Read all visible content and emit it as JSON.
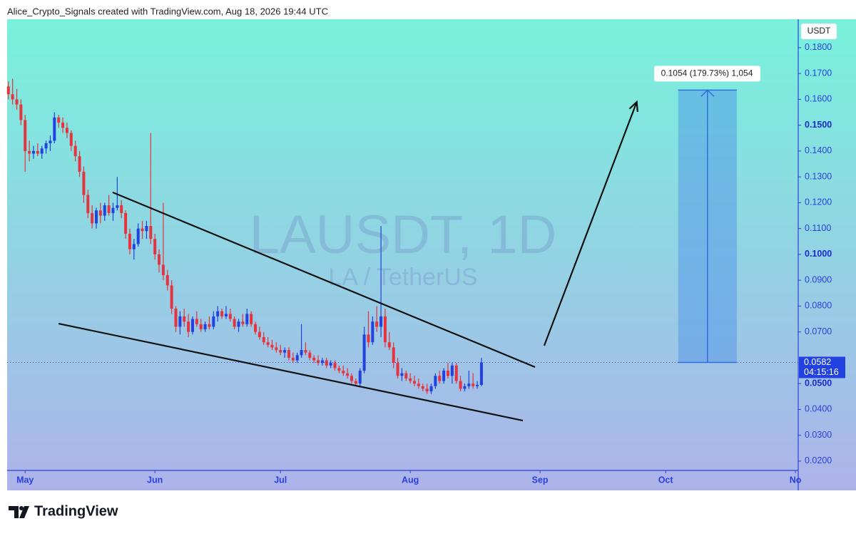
{
  "header": "Alice_Crypto_Signals created with TradingView.com, Aug 18, 2026 19:44 UTC",
  "footer": "TradingView",
  "chart_data": {
    "type": "candlestick",
    "watermark": "LAUSDT, 1D",
    "watermark_sub": "LA / TetherUS",
    "currency": "USDT",
    "countdown": "04:15:16",
    "up_color": "#2141e0",
    "down_color": "#e5343f",
    "xlim": [
      -0.3,
      188.5
    ],
    "ylim": [
      0.0164,
      0.191
    ],
    "xticks": [
      {
        "value": 4,
        "label": "May"
      },
      {
        "value": 35,
        "label": "Jun"
      },
      {
        "value": 65,
        "label": "Jul"
      },
      {
        "value": 96,
        "label": "Aug"
      },
      {
        "value": 127,
        "label": "Sep"
      },
      {
        "value": 157,
        "label": "Oct"
      },
      {
        "value": 188,
        "label": "No"
      }
    ],
    "yticks": [
      {
        "value": 0.18,
        "label": "0.1800"
      },
      {
        "value": 0.17,
        "label": "0.1700"
      },
      {
        "value": 0.16,
        "label": "0.1600"
      },
      {
        "value": 0.15,
        "label": "0.1500"
      },
      {
        "value": 0.14,
        "label": "0.1400"
      },
      {
        "value": 0.13,
        "label": "0.1300"
      },
      {
        "value": 0.12,
        "label": "0.1200"
      },
      {
        "value": 0.11,
        "label": "0.1100"
      },
      {
        "value": 0.1,
        "label": "0.1000"
      },
      {
        "value": 0.09,
        "label": "0.0900"
      },
      {
        "value": 0.08,
        "label": "0.0800"
      },
      {
        "value": 0.07,
        "label": "0.0700"
      },
      {
        "value": 0.05,
        "label": "0.0500"
      },
      {
        "value": 0.04,
        "label": "0.0400"
      },
      {
        "value": 0.03,
        "label": "0.0300"
      },
      {
        "value": 0.02,
        "label": "0.0200"
      }
    ],
    "candles": [
      [
        0.165,
        0.167,
        0.16,
        0.162
      ],
      [
        0.162,
        0.168,
        0.158,
        0.16
      ],
      [
        0.16,
        0.164,
        0.156,
        0.158
      ],
      [
        0.158,
        0.16,
        0.15,
        0.152
      ],
      [
        0.152,
        0.154,
        0.132,
        0.14
      ],
      [
        0.14,
        0.144,
        0.136,
        0.139
      ],
      [
        0.139,
        0.142,
        0.137,
        0.14
      ],
      [
        0.14,
        0.143,
        0.138,
        0.139
      ],
      [
        0.139,
        0.142,
        0.137,
        0.141
      ],
      [
        0.141,
        0.144,
        0.139,
        0.143
      ],
      [
        0.143,
        0.146,
        0.14,
        0.144
      ],
      [
        0.144,
        0.155,
        0.143,
        0.153
      ],
      [
        0.153,
        0.154,
        0.149,
        0.151
      ],
      [
        0.151,
        0.153,
        0.147,
        0.149
      ],
      [
        0.149,
        0.151,
        0.145,
        0.147
      ],
      [
        0.147,
        0.148,
        0.14,
        0.142
      ],
      [
        0.142,
        0.144,
        0.136,
        0.138
      ],
      [
        0.138,
        0.14,
        0.13,
        0.132
      ],
      [
        0.132,
        0.134,
        0.12,
        0.123
      ],
      [
        0.123,
        0.125,
        0.114,
        0.116
      ],
      [
        0.116,
        0.119,
        0.11,
        0.112
      ],
      [
        0.112,
        0.118,
        0.11,
        0.117
      ],
      [
        0.117,
        0.12,
        0.112,
        0.115
      ],
      [
        0.115,
        0.12,
        0.113,
        0.119
      ],
      [
        0.119,
        0.123,
        0.115,
        0.116
      ],
      [
        0.116,
        0.12,
        0.113,
        0.118
      ],
      [
        0.118,
        0.13,
        0.117,
        0.119
      ],
      [
        0.119,
        0.121,
        0.114,
        0.116
      ],
      [
        0.116,
        0.117,
        0.106,
        0.108
      ],
      [
        0.108,
        0.11,
        0.1,
        0.102
      ],
      [
        0.102,
        0.106,
        0.098,
        0.104
      ],
      [
        0.104,
        0.112,
        0.103,
        0.11
      ],
      [
        0.11,
        0.113,
        0.106,
        0.109
      ],
      [
        0.109,
        0.113,
        0.106,
        0.111
      ],
      [
        0.111,
        0.147,
        0.104,
        0.106
      ],
      [
        0.106,
        0.108,
        0.098,
        0.1
      ],
      [
        0.1,
        0.102,
        0.093,
        0.096
      ],
      [
        0.096,
        0.12,
        0.09,
        0.092
      ],
      [
        0.092,
        0.094,
        0.086,
        0.088
      ],
      [
        0.088,
        0.09,
        0.077,
        0.079
      ],
      [
        0.079,
        0.08,
        0.07,
        0.072
      ],
      [
        0.072,
        0.078,
        0.069,
        0.076
      ],
      [
        0.076,
        0.079,
        0.072,
        0.074
      ],
      [
        0.074,
        0.077,
        0.068,
        0.07
      ],
      [
        0.07,
        0.076,
        0.069,
        0.075
      ],
      [
        0.075,
        0.078,
        0.072,
        0.073
      ],
      [
        0.073,
        0.075,
        0.07,
        0.071
      ],
      [
        0.071,
        0.074,
        0.07,
        0.073
      ],
      [
        0.073,
        0.076,
        0.071,
        0.072
      ],
      [
        0.072,
        0.078,
        0.071,
        0.076
      ],
      [
        0.076,
        0.08,
        0.074,
        0.078
      ],
      [
        0.078,
        0.079,
        0.075,
        0.076
      ],
      [
        0.076,
        0.08,
        0.075,
        0.077
      ],
      [
        0.077,
        0.079,
        0.074,
        0.075
      ],
      [
        0.075,
        0.076,
        0.071,
        0.072
      ],
      [
        0.072,
        0.075,
        0.07,
        0.074
      ],
      [
        0.074,
        0.077,
        0.072,
        0.073
      ],
      [
        0.073,
        0.079,
        0.072,
        0.077
      ],
      [
        0.077,
        0.078,
        0.072,
        0.073
      ],
      [
        0.073,
        0.074,
        0.069,
        0.07
      ],
      [
        0.07,
        0.072,
        0.067,
        0.068
      ],
      [
        0.068,
        0.07,
        0.065,
        0.066
      ],
      [
        0.066,
        0.068,
        0.064,
        0.065
      ],
      [
        0.065,
        0.067,
        0.063,
        0.064
      ],
      [
        0.064,
        0.066,
        0.062,
        0.063
      ],
      [
        0.063,
        0.065,
        0.061,
        0.062
      ],
      [
        0.062,
        0.064,
        0.06,
        0.063
      ],
      [
        0.063,
        0.064,
        0.059,
        0.06
      ],
      [
        0.06,
        0.062,
        0.058,
        0.059
      ],
      [
        0.059,
        0.062,
        0.058,
        0.061
      ],
      [
        0.061,
        0.073,
        0.06,
        0.063
      ],
      [
        0.063,
        0.066,
        0.061,
        0.062
      ],
      [
        0.062,
        0.063,
        0.059,
        0.06
      ],
      [
        0.06,
        0.061,
        0.058,
        0.059
      ],
      [
        0.059,
        0.061,
        0.057,
        0.058
      ],
      [
        0.058,
        0.06,
        0.057,
        0.059
      ],
      [
        0.059,
        0.06,
        0.056,
        0.057
      ],
      [
        0.057,
        0.059,
        0.056,
        0.058
      ],
      [
        0.058,
        0.059,
        0.055,
        0.056
      ],
      [
        0.056,
        0.057,
        0.054,
        0.055
      ],
      [
        0.055,
        0.057,
        0.053,
        0.054
      ],
      [
        0.054,
        0.056,
        0.052,
        0.053
      ],
      [
        0.053,
        0.054,
        0.05,
        0.051
      ],
      [
        0.051,
        0.052,
        0.049,
        0.05
      ],
      [
        0.05,
        0.056,
        0.049,
        0.055
      ],
      [
        0.055,
        0.072,
        0.054,
        0.069
      ],
      [
        0.069,
        0.078,
        0.064,
        0.066
      ],
      [
        0.066,
        0.076,
        0.065,
        0.074
      ],
      [
        0.074,
        0.08,
        0.07,
        0.072
      ],
      [
        0.072,
        0.111,
        0.068,
        0.076
      ],
      [
        0.076,
        0.079,
        0.064,
        0.066
      ],
      [
        0.066,
        0.07,
        0.063,
        0.064
      ],
      [
        0.064,
        0.066,
        0.056,
        0.058
      ],
      [
        0.058,
        0.06,
        0.052,
        0.053
      ],
      [
        0.053,
        0.056,
        0.051,
        0.054
      ],
      [
        0.054,
        0.055,
        0.051,
        0.052
      ],
      [
        0.052,
        0.054,
        0.05,
        0.051
      ],
      [
        0.051,
        0.053,
        0.049,
        0.05
      ],
      [
        0.05,
        0.052,
        0.048,
        0.049
      ],
      [
        0.049,
        0.05,
        0.047,
        0.048
      ],
      [
        0.048,
        0.05,
        0.046,
        0.047
      ],
      [
        0.047,
        0.05,
        0.046,
        0.049
      ],
      [
        0.049,
        0.054,
        0.048,
        0.053
      ],
      [
        0.053,
        0.055,
        0.05,
        0.051
      ],
      [
        0.051,
        0.056,
        0.05,
        0.055
      ],
      [
        0.055,
        0.058,
        0.052,
        0.053
      ],
      [
        0.053,
        0.058,
        0.05,
        0.057
      ],
      [
        0.057,
        0.058,
        0.05,
        0.051
      ],
      [
        0.051,
        0.053,
        0.047,
        0.048
      ],
      [
        0.048,
        0.05,
        0.047,
        0.049
      ],
      [
        0.049,
        0.055,
        0.048,
        0.05
      ],
      [
        0.05,
        0.054,
        0.048,
        0.049
      ],
      [
        0.049,
        0.051,
        0.048,
        0.0495
      ],
      [
        0.0495,
        0.06,
        0.049,
        0.0582
      ]
    ],
    "projection": {
      "change": 0.1054,
      "label": "0.1054 (179.73%) 1,054",
      "start": 160,
      "end": 174
    },
    "trendlines": [
      [
        24.9,
        0.124,
        125.8,
        0.0564
      ],
      [
        12,
        0.0732,
        122.9,
        0.0357
      ]
    ],
    "arrow": [
      128,
      0.0647,
      150.1,
      0.159
    ]
  }
}
